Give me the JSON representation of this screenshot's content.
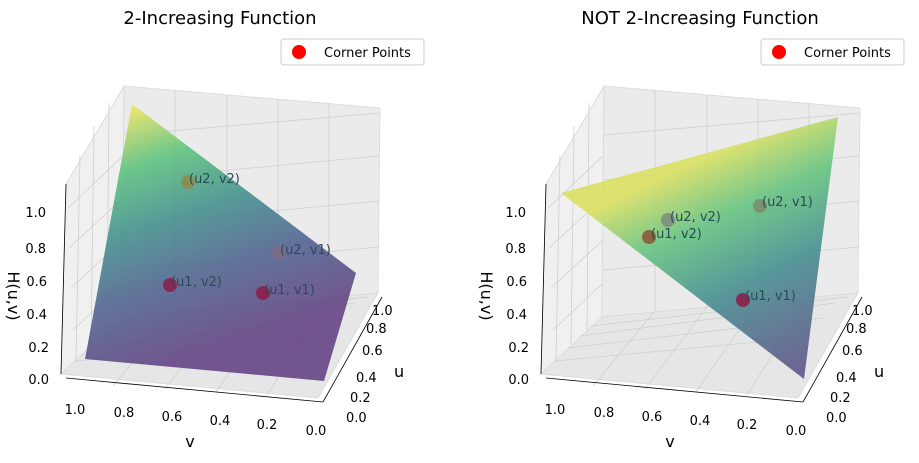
{
  "chart_data": [
    {
      "type": "surface3d",
      "title": "2-Increasing Function",
      "xlabel": "v",
      "ylabel": "u",
      "zlabel": "H(u,v)",
      "x_ticks": [
        "1.0",
        "0.8",
        "0.6",
        "0.4",
        "0.2",
        "0.0"
      ],
      "y_ticks": [
        "0.0",
        "0.2",
        "0.4",
        "0.6",
        "0.8",
        "1.0"
      ],
      "z_ticks": [
        "0.0",
        "0.2",
        "0.4",
        "0.6",
        "0.8",
        "1.0"
      ],
      "legend": {
        "label": "Corner Points",
        "color": "#ff0000",
        "placement": "top-right"
      },
      "surface": {
        "colormap": "viridis",
        "corners": {
          "u0v0": 0.0,
          "u1v0": 0.0,
          "u0v1": 0.0,
          "u1v1": 1.0
        }
      },
      "points": [
        {
          "label": "(u1, v1)",
          "u": 0.25,
          "v": 0.25,
          "H": 0.06
        },
        {
          "label": "(u1, v2)",
          "u": 0.25,
          "v": 0.75,
          "H": 0.19
        },
        {
          "label": "(u2, v1)",
          "u": 0.75,
          "v": 0.25,
          "H": 0.19
        },
        {
          "label": "(u2, v2)",
          "u": 0.75,
          "v": 0.75,
          "H": 0.56
        }
      ]
    },
    {
      "type": "surface3d",
      "title": "NOT 2-Increasing Function",
      "xlabel": "v",
      "ylabel": "u",
      "zlabel": "H(u,v)",
      "x_ticks": [
        "1.0",
        "0.8",
        "0.6",
        "0.4",
        "0.2",
        "0.0"
      ],
      "y_ticks": [
        "0.0",
        "0.2",
        "0.4",
        "0.6",
        "0.8",
        "1.0"
      ],
      "z_ticks": [
        "0.0",
        "0.2",
        "0.4",
        "0.6",
        "0.8",
        "1.0"
      ],
      "legend": {
        "label": "Corner Points",
        "color": "#ff0000",
        "placement": "top-right"
      },
      "surface": {
        "colormap": "viridis",
        "corners": {
          "u0v0": 0.0,
          "u1v0": 1.0,
          "u0v1": 1.0,
          "u1v1": 0.5
        }
      },
      "points": [
        {
          "label": "(u1, v1)",
          "u": 0.25,
          "v": 0.25,
          "H": 0.4
        },
        {
          "label": "(u1, v2)",
          "u": 0.25,
          "v": 0.75,
          "H": 0.7
        },
        {
          "label": "(u2, v1)",
          "u": 0.75,
          "v": 0.25,
          "H": 0.7
        },
        {
          "label": "(u2, v2)",
          "u": 0.75,
          "v": 0.75,
          "H": 0.75
        }
      ]
    }
  ]
}
